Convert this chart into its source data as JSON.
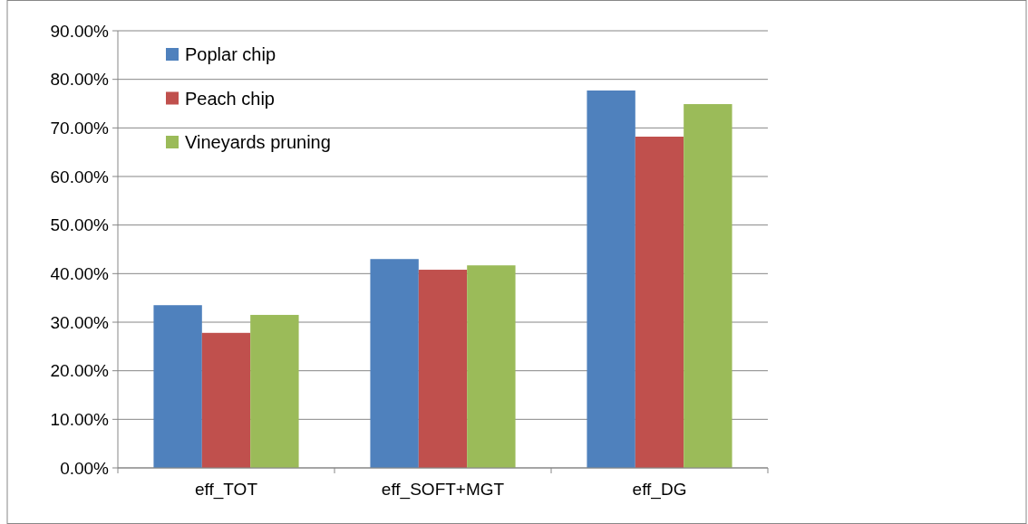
{
  "chart_data": {
    "type": "bar",
    "categories": [
      "eff_TOT",
      "eff_SOFT+MGT",
      "eff_DG"
    ],
    "series": [
      {
        "name": "Poplar chip",
        "color": "#4f81bd",
        "values": [
          33.5,
          43.0,
          77.7
        ]
      },
      {
        "name": "Peach chip",
        "color": "#c0504d",
        "values": [
          27.8,
          40.8,
          68.2
        ]
      },
      {
        "name": "Vineyards pruning",
        "color": "#9bbb59",
        "values": [
          31.5,
          41.7,
          74.9
        ]
      }
    ],
    "ylim": [
      0,
      90
    ],
    "yticks": [
      {
        "value": 0,
        "label": "0.00%"
      },
      {
        "value": 10,
        "label": "10.00%"
      },
      {
        "value": 20,
        "label": "20.00%"
      },
      {
        "value": 30,
        "label": "30.00%"
      },
      {
        "value": 40,
        "label": "40.00%"
      },
      {
        "value": 50,
        "label": "50.00%"
      },
      {
        "value": 60,
        "label": "60.00%"
      },
      {
        "value": 70,
        "label": "70.00%"
      },
      {
        "value": 80,
        "label": "80.00%"
      },
      {
        "value": 90,
        "label": "90.00%"
      }
    ],
    "grid": "y",
    "legend": "top left"
  }
}
